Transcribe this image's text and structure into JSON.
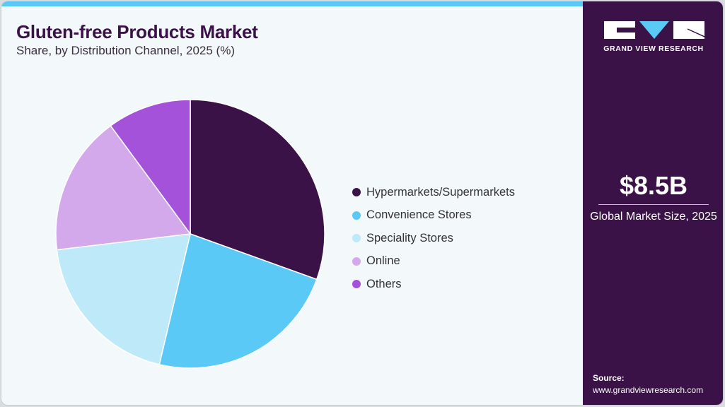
{
  "header": {
    "title": "Gluten-free Products Market",
    "subtitle": "Share, by Distribution Channel, 2025 (%)"
  },
  "sidebar": {
    "logo_text": "GRAND VIEW RESEARCH",
    "market_size": "$8.5B",
    "market_size_label": "Global Market Size, 2025",
    "source_label": "Source:",
    "source_url": "www.grandviewresearch.com"
  },
  "chart_data": {
    "type": "pie",
    "title": "Gluten-free Products Market",
    "subtitle": "Share, by Distribution Channel, 2025 (%)",
    "legend_position": "right",
    "categories": [
      "Hypermarkets/Supermarkets",
      "Convenience Stores",
      "Speciality Stores",
      "Online",
      "Others"
    ],
    "values": [
      30.5,
      23.2,
      19.4,
      16.8,
      10.1
    ],
    "colors": [
      "#3a1248",
      "#5bc9f5",
      "#bde9f9",
      "#d4a9ec",
      "#a452d9"
    ]
  }
}
